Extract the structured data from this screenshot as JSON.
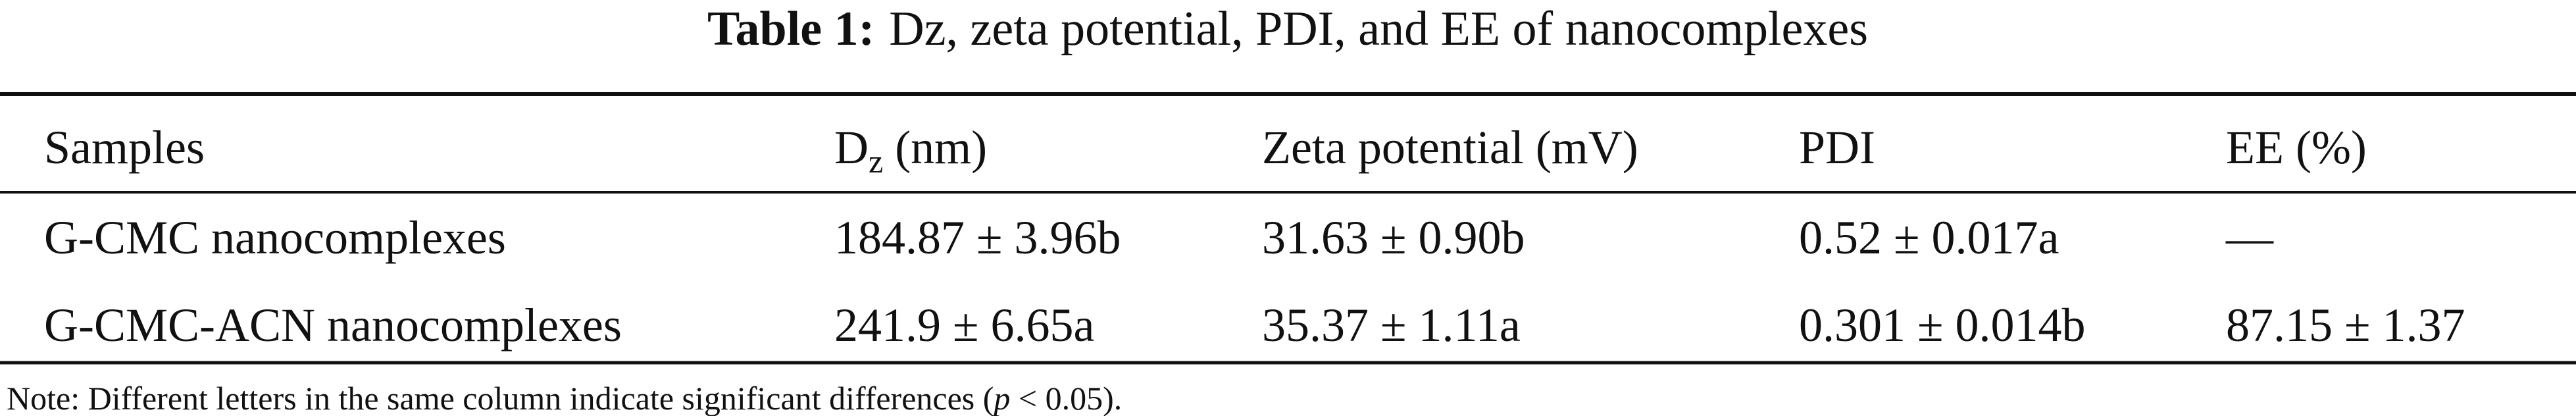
{
  "title": {
    "label": "Table 1:",
    "text": "Dz, zeta potential, PDI, and EE of nanocomplexes"
  },
  "table": {
    "header": [
      "Samples",
      {
        "main": "D",
        "sub": "z",
        "rest": " (nm)"
      },
      "Zeta potential (mV)",
      "PDI",
      "EE (%)"
    ],
    "rows": [
      [
        "G-CMC nanocomplexes",
        "184.87 ± 3.96b",
        "31.63 ± 0.90b",
        "0.52 ± 0.017a",
        "—"
      ],
      [
        "G-CMC-ACN nanocomplexes",
        "241.9 ± 6.65a",
        "35.37 ± 1.11a",
        "0.301 ± 0.014b",
        "87.15 ± 1.37"
      ]
    ]
  },
  "note": {
    "before": "Note: Different letters in the same column indicate significant differences (",
    "italic": "p",
    "after": " < 0.05)."
  }
}
